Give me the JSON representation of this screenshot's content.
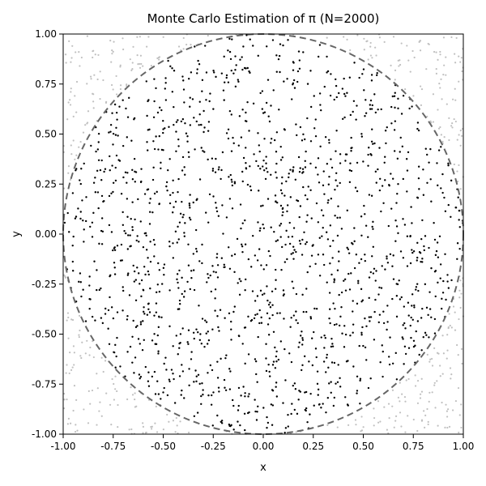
{
  "chart_data": {
    "type": "scatter",
    "title": "Monte Carlo Estimation of π (N=2000)",
    "xlabel": "x",
    "ylabel": "y",
    "xlim": [
      -1.0,
      1.0
    ],
    "ylim": [
      -1.0,
      1.0
    ],
    "x_ticks": [
      "-1.00",
      "-0.75",
      "-0.50",
      "-0.25",
      "0.00",
      "0.25",
      "0.50",
      "0.75",
      "1.00"
    ],
    "y_ticks": [
      "1.00",
      "0.75",
      "0.50",
      "0.25",
      "0.00",
      "-0.25",
      "-0.50",
      "-0.75",
      "-1.00"
    ],
    "grid": false,
    "legend": "none",
    "n_points": 2000,
    "sampling": "uniform random points in [-1, 1] x [-1, 1]; point coordinates are approximated",
    "series": [
      {
        "role": "inside",
        "color": "#000000",
        "description": "points with x^2 + y^2 <= 1"
      },
      {
        "role": "outside",
        "color": "#c0c0c0",
        "description": "points with x^2 + y^2 > 1"
      }
    ],
    "circle": {
      "center": [
        0,
        0
      ],
      "radius": 1,
      "style": "dashed",
      "color": "#666666"
    }
  }
}
